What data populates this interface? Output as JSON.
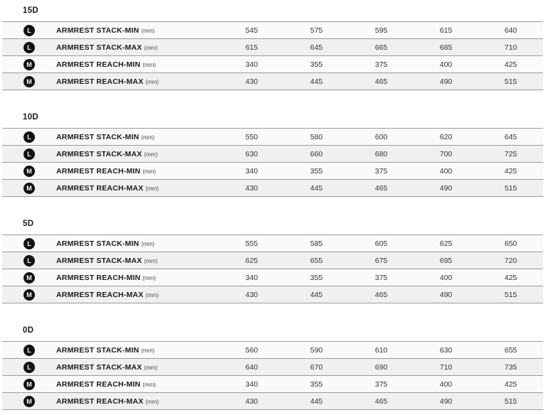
{
  "colors": {
    "row_odd_bg": "#fafafa",
    "row_even_bg": "#f0f0f0",
    "border": "#9a9a9a",
    "badge_bg": "#121212",
    "badge_text": "#ffffff",
    "label_text": "#1a1a1a",
    "unit_text": "#4a4a4a",
    "value_text": "#333333",
    "title_text": "#1a1a1a",
    "page_bg": "#ffffff"
  },
  "table": {
    "unit_suffix": "(mm)",
    "value_columns": 5,
    "sections": [
      {
        "title": "15D",
        "rows": [
          {
            "badge": "L",
            "label": "ARMREST STACK-MIN",
            "unit": "(mm)",
            "values": [
              "545",
              "575",
              "595",
              "615",
              "640"
            ]
          },
          {
            "badge": "L",
            "label": "ARMREST STACK-MAX",
            "unit": "(mm)",
            "values": [
              "615",
              "645",
              "665",
              "685",
              "710"
            ]
          },
          {
            "badge": "M",
            "label": "ARMREST REACH-MIN",
            "unit": "(mm)",
            "values": [
              "340",
              "355",
              "375",
              "400",
              "425"
            ]
          },
          {
            "badge": "M",
            "label": "ARMREST REACH-MAX",
            "unit": "(mm)",
            "values": [
              "430",
              "445",
              "465",
              "490",
              "515"
            ]
          }
        ]
      },
      {
        "title": "10D",
        "rows": [
          {
            "badge": "L",
            "label": "ARMREST STACK-MIN",
            "unit": "(mm)",
            "values": [
              "550",
              "580",
              "600",
              "620",
              "645"
            ]
          },
          {
            "badge": "L",
            "label": "ARMREST STACK-MAX",
            "unit": "(mm)",
            "values": [
              "630",
              "660",
              "680",
              "700",
              "725"
            ]
          },
          {
            "badge": "M",
            "label": "ARMREST REACH-MIN",
            "unit": "(mm)",
            "values": [
              "340",
              "355",
              "375",
              "400",
              "425"
            ]
          },
          {
            "badge": "M",
            "label": "ARMREST REACH-MAX",
            "unit": "(mm)",
            "values": [
              "430",
              "445",
              "465",
              "490",
              "515"
            ]
          }
        ]
      },
      {
        "title": "5D",
        "rows": [
          {
            "badge": "L",
            "label": "ARMREST STACK-MIN",
            "unit": "(mm)",
            "values": [
              "555",
              "585",
              "605",
              "625",
              "650"
            ]
          },
          {
            "badge": "L",
            "label": "ARMREST STACK-MAX",
            "unit": "(mm)",
            "values": [
              "625",
              "655",
              "675",
              "695",
              "720"
            ]
          },
          {
            "badge": "M",
            "label": "ARMREST REACH-MIN",
            "unit": "(mm)",
            "values": [
              "340",
              "355",
              "375",
              "400",
              "425"
            ]
          },
          {
            "badge": "M",
            "label": "ARMREST REACH-MAX",
            "unit": "(mm)",
            "values": [
              "430",
              "445",
              "465",
              "490",
              "515"
            ]
          }
        ]
      },
      {
        "title": "0D",
        "rows": [
          {
            "badge": "L",
            "label": "ARMREST STACK-MIN",
            "unit": "(mm)",
            "values": [
              "560",
              "590",
              "610",
              "630",
              "655"
            ]
          },
          {
            "badge": "L",
            "label": "ARMREST STACK-MAX",
            "unit": "(mm)",
            "values": [
              "640",
              "670",
              "690",
              "710",
              "735"
            ]
          },
          {
            "badge": "M",
            "label": "ARMREST REACH-MIN",
            "unit": "(mm)",
            "values": [
              "340",
              "355",
              "375",
              "400",
              "425"
            ]
          },
          {
            "badge": "M",
            "label": "ARMREST REACH-MAX",
            "unit": "(mm)",
            "values": [
              "430",
              "445",
              "465",
              "490",
              "515"
            ]
          }
        ]
      }
    ]
  }
}
